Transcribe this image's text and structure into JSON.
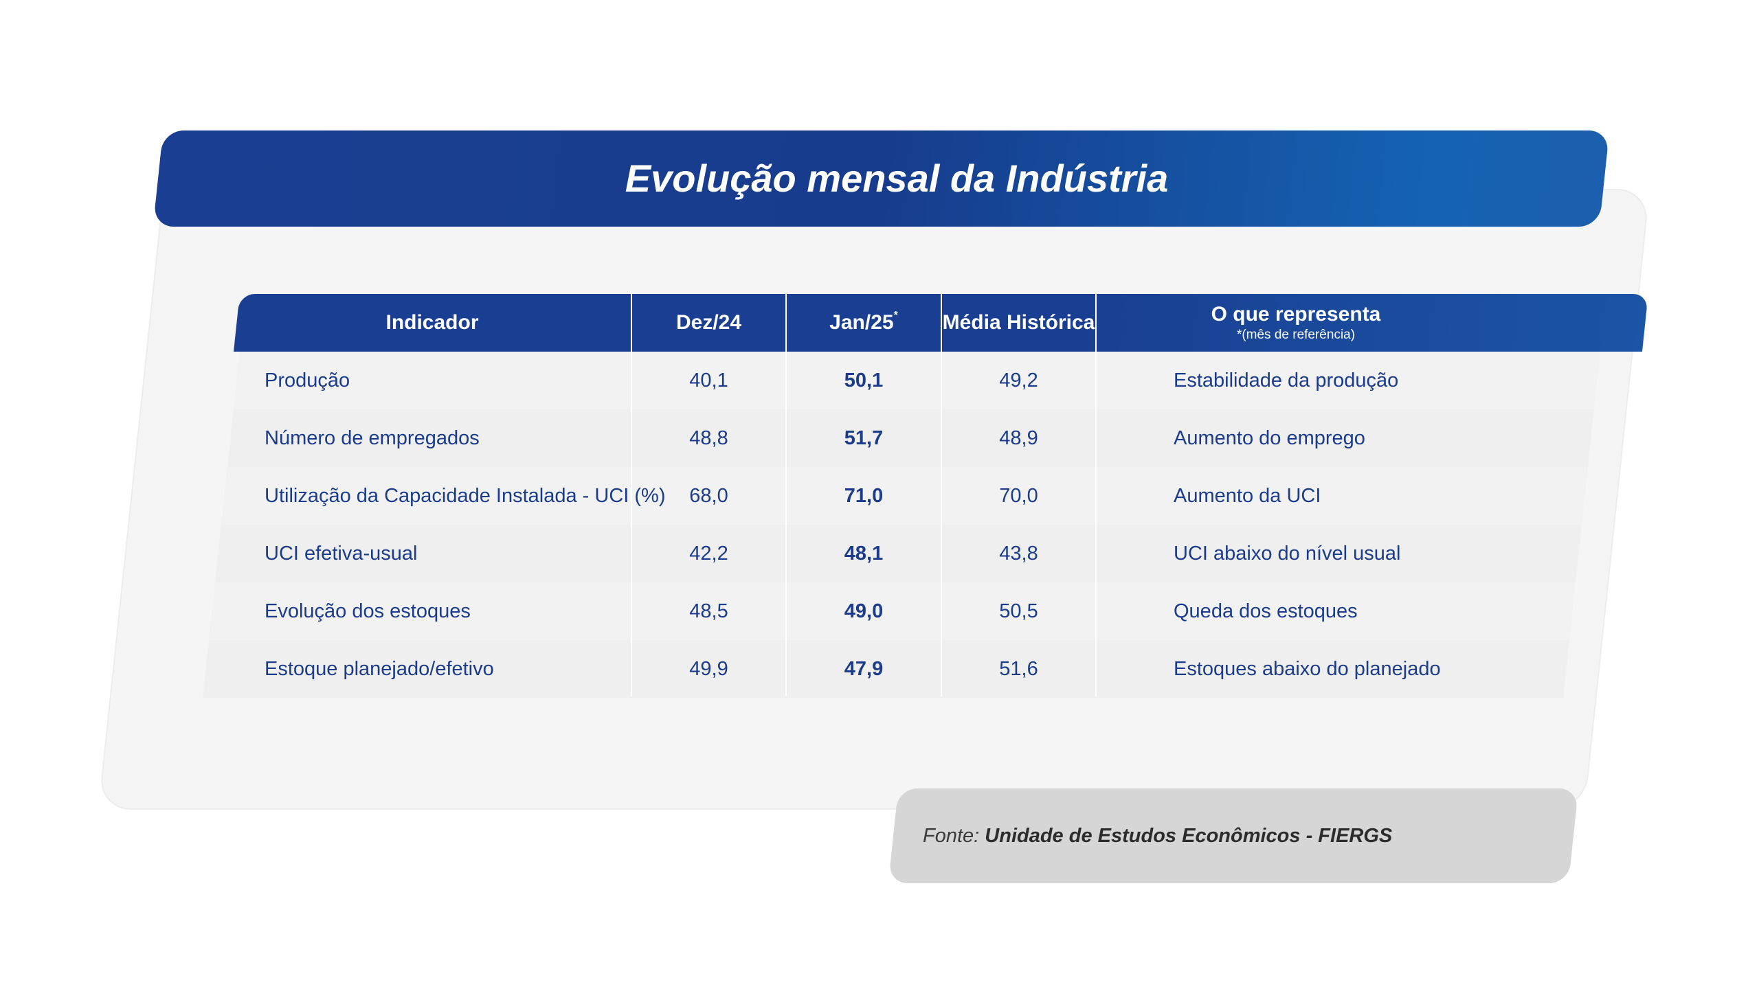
{
  "title": "Evolução mensal da Indústria",
  "table": {
    "headers": {
      "indicator": "Indicador",
      "dec": "Dez/24",
      "jan": "Jan/25",
      "jan_mark": "*",
      "avg": "Média Histórica",
      "meaning": "O que representa",
      "meaning_note": "*(mês de referência)"
    },
    "rows": [
      {
        "indicator": "Produção",
        "dec": "40,1",
        "jan": "50,1",
        "avg": "49,2",
        "meaning": "Estabilidade da produção"
      },
      {
        "indicator": "Número de empregados",
        "dec": "48,8",
        "jan": "51,7",
        "avg": "48,9",
        "meaning": "Aumento do emprego"
      },
      {
        "indicator": "Utilização da Capacidade Instalada - UCI (%)",
        "dec": "68,0",
        "jan": "71,0",
        "avg": "70,0",
        "meaning": "Aumento da UCI"
      },
      {
        "indicator": "UCI efetiva-usual",
        "dec": "42,2",
        "jan": "48,1",
        "avg": "43,8",
        "meaning": "UCI abaixo do nível usual"
      },
      {
        "indicator": "Evolução dos estoques",
        "dec": "48,5",
        "jan": "49,0",
        "avg": "50,5",
        "meaning": "Queda dos estoques"
      },
      {
        "indicator": "Estoque planejado/efetivo",
        "dec": "49,9",
        "jan": "47,9",
        "avg": "51,6",
        "meaning": "Estoques abaixo do planejado"
      }
    ]
  },
  "source": {
    "label": "Fonte:",
    "value": "Unidade de Estudos Econômicos - FIERGS"
  }
}
